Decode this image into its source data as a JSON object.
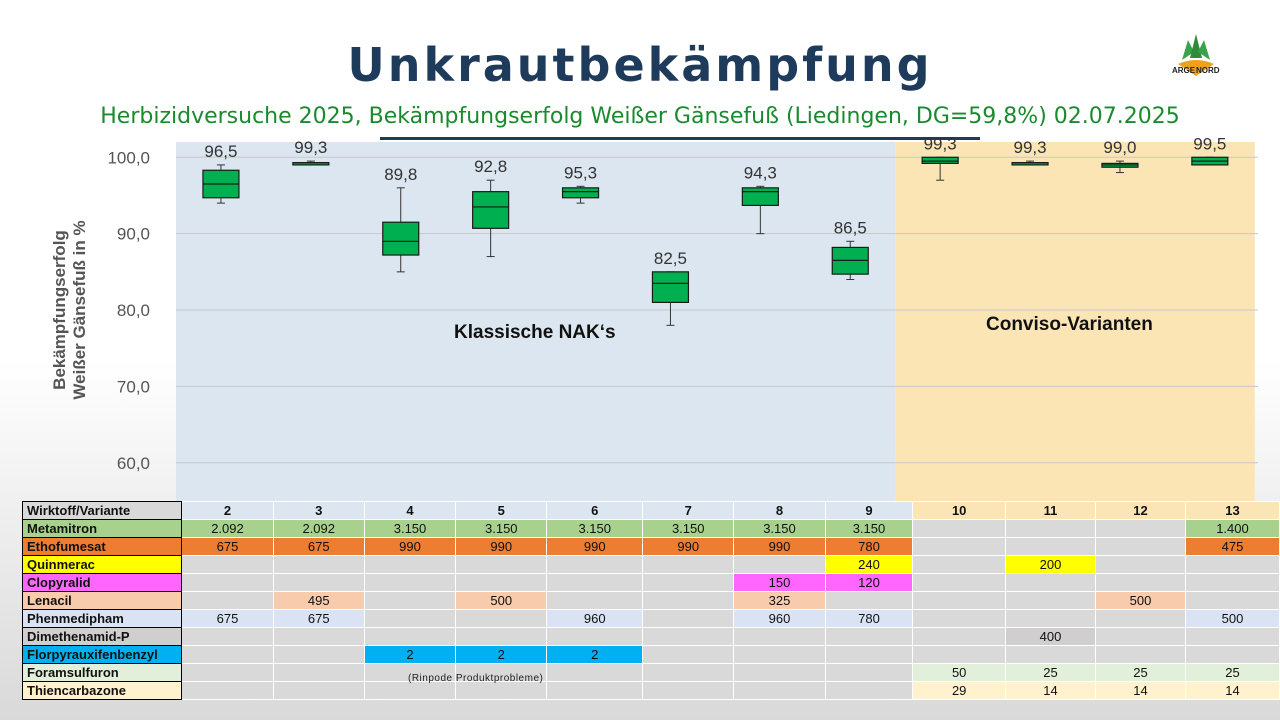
{
  "title": "Unkrautbekämpfung",
  "subtitle": "Herbizidversuche 2025, Bekämpfungserfolg Weißer Gänsefuß (Liedingen, DG=59,8%) 02.07.2025",
  "logo": {
    "left": "ARGE",
    "right": "NORD"
  },
  "chart_data": {
    "type": "boxplot",
    "ylabel": [
      "Bekämpfungserfolg",
      "Weißer Gänsefuß in %"
    ],
    "ylim": [
      55,
      102
    ],
    "yticks": [
      "100,0",
      "90,0",
      "80,0",
      "70,0",
      "60,0"
    ],
    "ytick_values": [
      100,
      90,
      80,
      70,
      60
    ],
    "groups": [
      {
        "label": "Klassische NAK‘s",
        "variants": [
          "2",
          "3",
          "4",
          "5",
          "6",
          "7",
          "8",
          "9"
        ],
        "color": "#dce6f0"
      },
      {
        "label": "Conviso-Varianten",
        "variants": [
          "10",
          "11",
          "12",
          "13"
        ],
        "color": "#fbe5b5"
      }
    ],
    "boxes": [
      {
        "variant": "2",
        "label": "96,5",
        "mean": 96.5,
        "min": 94.0,
        "q1": 94.7,
        "median": 96.5,
        "q3": 98.3,
        "max": 99.0
      },
      {
        "variant": "3",
        "label": "99,3",
        "mean": 99.3,
        "min": 99.0,
        "q1": 99.0,
        "median": 99.3,
        "q3": 99.3,
        "max": 99.5
      },
      {
        "variant": "4",
        "label": "89,8",
        "mean": 89.8,
        "min": 85.0,
        "q1": 87.2,
        "median": 89.0,
        "q3": 91.5,
        "max": 96.0
      },
      {
        "variant": "5",
        "label": "92,8",
        "mean": 92.8,
        "min": 87.0,
        "q1": 90.7,
        "median": 93.5,
        "q3": 95.5,
        "max": 97.0
      },
      {
        "variant": "6",
        "label": "95,3",
        "mean": 95.3,
        "min": 94.0,
        "q1": 94.7,
        "median": 95.5,
        "q3": 96.0,
        "max": 96.2
      },
      {
        "variant": "7",
        "label": "82,5",
        "mean": 82.5,
        "min": 78.0,
        "q1": 81.0,
        "median": 83.5,
        "q3": 85.0,
        "max": 85.0
      },
      {
        "variant": "8",
        "label": "94,3",
        "mean": 94.3,
        "min": 90.0,
        "q1": 93.7,
        "median": 95.5,
        "q3": 96.0,
        "max": 96.2
      },
      {
        "variant": "9",
        "label": "86,5",
        "mean": 86.5,
        "min": 84.0,
        "q1": 84.7,
        "median": 86.5,
        "q3": 88.2,
        "max": 89.0
      },
      {
        "variant": "10",
        "label": "99,3",
        "mean": 99.3,
        "min": 97.0,
        "q1": 99.2,
        "median": 99.5,
        "q3": 100.0,
        "max": 100.0
      },
      {
        "variant": "11",
        "label": "99,3",
        "mean": 99.3,
        "min": 99.0,
        "q1": 99.0,
        "median": 99.3,
        "q3": 99.3,
        "max": 99.5
      },
      {
        "variant": "12",
        "label": "99,0",
        "mean": 99.0,
        "min": 98.0,
        "q1": 98.7,
        "median": 99.0,
        "q3": 99.2,
        "max": 99.5
      },
      {
        "variant": "13",
        "label": "99,5",
        "mean": 99.5,
        "min": 99.0,
        "q1": 99.0,
        "median": 99.5,
        "q3": 100.0,
        "max": 100.0
      }
    ]
  },
  "table": {
    "header_label": "Wirktoff/Variante",
    "variants": [
      "2",
      "3",
      "4",
      "5",
      "6",
      "7",
      "8",
      "9",
      "10",
      "11",
      "12",
      "13"
    ],
    "rows": [
      {
        "name": "Metamitron",
        "color": "#a9d18e",
        "values": [
          "2.092",
          "2.092",
          "3.150",
          "3.150",
          "3.150",
          "3.150",
          "3.150",
          "3.150",
          "",
          "",
          "",
          "1.400"
        ]
      },
      {
        "name": "Ethofumesat",
        "color": "#ed7d31",
        "values": [
          "675",
          "675",
          "990",
          "990",
          "990",
          "990",
          "990",
          "780",
          "",
          "",
          "",
          "475"
        ]
      },
      {
        "name": "Quinmerac",
        "color": "#ffff00",
        "values": [
          "",
          "",
          "",
          "",
          "",
          "",
          "",
          "240",
          "",
          "200",
          "",
          ""
        ]
      },
      {
        "name": "Clopyralid",
        "color": "#ff66ff",
        "values": [
          "",
          "",
          "",
          "",
          "",
          "",
          "150",
          "120",
          "",
          "",
          "",
          ""
        ]
      },
      {
        "name": "Lenacil",
        "color": "#f8cbad",
        "values": [
          "",
          "495",
          "",
          "500",
          "",
          "",
          "325",
          "",
          "",
          "",
          "500",
          ""
        ]
      },
      {
        "name": "Phenmedipham",
        "color": "#dae3f3",
        "values": [
          "675",
          "675",
          "",
          "",
          "960",
          "",
          "960",
          "780",
          "",
          "",
          "",
          "500"
        ]
      },
      {
        "name": "Dimethenamid-P",
        "color": "#d0cece",
        "values": [
          "",
          "",
          "",
          "",
          "",
          "",
          "",
          "",
          "",
          "400",
          "",
          ""
        ]
      },
      {
        "name": "Florpyrauxifenbenzyl",
        "color": "#00b0f0",
        "values": [
          "",
          "",
          "2",
          "2",
          "2",
          "",
          "",
          "",
          "",
          "",
          "",
          ""
        ]
      },
      {
        "name": "Foramsulfuron",
        "color": "#e2efda",
        "values": [
          "",
          "",
          "",
          "",
          "",
          "",
          "",
          "",
          "50",
          "25",
          "25",
          "25"
        ]
      },
      {
        "name": "Thiencarbazone",
        "color": "#fff2cc",
        "values": [
          "",
          "",
          "",
          "",
          "",
          "",
          "",
          "",
          "29",
          "14",
          "14",
          "14"
        ]
      }
    ],
    "note": "(Rinpode Produktprobleme)"
  }
}
